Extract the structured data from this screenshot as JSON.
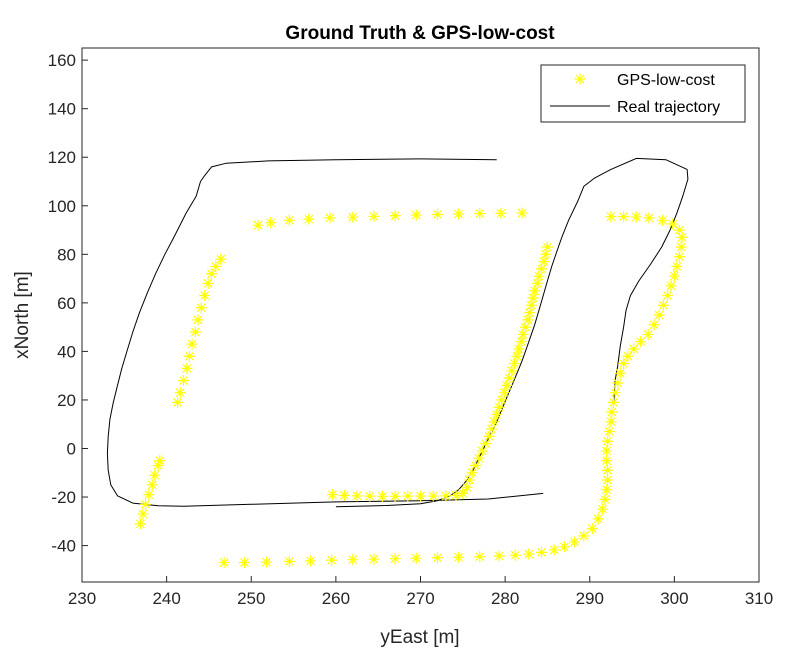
{
  "chart_data": {
    "type": "scatter",
    "title": "Ground Truth & GPS-low-cost",
    "xlabel": "yEast [m]",
    "ylabel": "xNorth [m]",
    "xlim": [
      230,
      310
    ],
    "ylim": [
      -55,
      165
    ],
    "xticks": [
      230,
      240,
      250,
      260,
      270,
      280,
      290,
      300,
      310
    ],
    "yticks": [
      -40,
      -20,
      0,
      20,
      40,
      60,
      80,
      100,
      120,
      140,
      160
    ],
    "grid": false,
    "legend_position": "top-right",
    "colors": {
      "gps": "#ffff00",
      "real": "#000000",
      "axis": "#262626"
    },
    "series": [
      {
        "name": "GPS-low-cost",
        "style": "markers",
        "marker": "asterisk",
        "segments": [
          [
            [
              236.9,
              -31
            ],
            [
              237.2,
              -27
            ],
            [
              237.5,
              -23
            ],
            [
              237.9,
              -19
            ],
            [
              238.3,
              -15
            ],
            [
              238.6,
              -11
            ],
            [
              239.0,
              -7
            ],
            [
              239.2,
              -5
            ]
          ],
          [
            [
              241.3,
              19
            ],
            [
              241.6,
              23
            ],
            [
              242.0,
              28
            ],
            [
              242.4,
              33
            ],
            [
              242.7,
              38
            ],
            [
              243.0,
              43
            ],
            [
              243.4,
              48
            ],
            [
              243.7,
              53
            ],
            [
              244.1,
              58
            ],
            [
              244.5,
              63
            ],
            [
              244.9,
              68
            ],
            [
              245.3,
              72
            ],
            [
              245.8,
              75
            ],
            [
              246.4,
              78
            ]
          ],
          [
            [
              250.8,
              92
            ],
            [
              252.3,
              93
            ],
            [
              254.5,
              94
            ],
            [
              256.8,
              94.5
            ],
            [
              259.3,
              95
            ],
            [
              262.0,
              95.3
            ],
            [
              264.5,
              95.6
            ],
            [
              267.0,
              95.9
            ],
            [
              269.5,
              96.2
            ],
            [
              272.0,
              96.4
            ],
            [
              274.5,
              96.6
            ],
            [
              277.0,
              96.8
            ],
            [
              279.5,
              96.9
            ],
            [
              282.0,
              97
            ]
          ],
          [
            [
              246.8,
              -47
            ],
            [
              249.2,
              -47
            ],
            [
              251.8,
              -46.8
            ],
            [
              254.5,
              -46.5
            ],
            [
              257.0,
              -46.3
            ],
            [
              259.5,
              -46
            ],
            [
              262.0,
              -45.8
            ],
            [
              264.5,
              -45.6
            ],
            [
              267.0,
              -45.4
            ],
            [
              269.5,
              -45.2
            ],
            [
              272.0,
              -45
            ],
            [
              274.5,
              -44.8
            ],
            [
              277.0,
              -44.6
            ],
            [
              279.3,
              -44.3
            ],
            [
              281.2,
              -44
            ],
            [
              282.8,
              -43.5
            ],
            [
              284.3,
              -42.8
            ],
            [
              285.8,
              -41.8
            ],
            [
              287.0,
              -40.5
            ],
            [
              288.2,
              -38.5
            ],
            [
              289.3,
              -36
            ],
            [
              290.3,
              -33
            ],
            [
              291.0,
              -29
            ],
            [
              291.5,
              -25
            ],
            [
              291.8,
              -21
            ],
            [
              292.0,
              -17
            ],
            [
              292.1,
              -13
            ],
            [
              292.1,
              -9
            ],
            [
              292.0,
              -5
            ],
            [
              292.0,
              -1
            ],
            [
              292.1,
              3
            ],
            [
              292.3,
              7
            ],
            [
              292.5,
              11
            ],
            [
              292.6,
              15
            ],
            [
              292.8,
              19
            ],
            [
              293.0,
              23
            ],
            [
              293.3,
              27
            ],
            [
              293.6,
              31
            ],
            [
              294.0,
              35
            ],
            [
              294.5,
              38
            ],
            [
              295.2,
              41
            ],
            [
              296.0,
              44
            ],
            [
              296.9,
              47
            ],
            [
              297.6,
              51
            ],
            [
              298.2,
              55
            ],
            [
              298.7,
              59
            ],
            [
              299.2,
              63
            ],
            [
              299.6,
              67
            ],
            [
              300.0,
              71
            ],
            [
              300.3,
              75
            ],
            [
              300.6,
              79
            ],
            [
              300.8,
              83
            ],
            [
              300.9,
              87
            ],
            [
              300.6,
              90
            ],
            [
              299.8,
              92.5
            ],
            [
              298.6,
              94
            ],
            [
              297.0,
              95
            ],
            [
              295.5,
              95.4
            ],
            [
              294.0,
              95.5
            ],
            [
              292.5,
              95.5
            ]
          ],
          [
            [
              259.6,
              -19
            ],
            [
              261.0,
              -19.3
            ],
            [
              262.5,
              -19.5
            ],
            [
              264.0,
              -19.6
            ],
            [
              265.5,
              -19.7
            ],
            [
              267.0,
              -19.7
            ],
            [
              268.5,
              -19.6
            ],
            [
              270.0,
              -19.6
            ],
            [
              271.5,
              -19.6
            ],
            [
              273.0,
              -19.5
            ],
            [
              274.2,
              -19.3
            ],
            [
              275.0,
              -18.5
            ],
            [
              275.5,
              -16
            ],
            [
              275.8,
              -13
            ],
            [
              276.1,
              -10
            ],
            [
              276.5,
              -7
            ],
            [
              276.9,
              -4
            ],
            [
              277.3,
              -1
            ],
            [
              277.7,
              2
            ],
            [
              278.1,
              5
            ],
            [
              278.4,
              8
            ],
            [
              278.7,
              11
            ],
            [
              279.0,
              14
            ],
            [
              279.3,
              17
            ],
            [
              279.6,
              20
            ],
            [
              279.9,
              23
            ],
            [
              280.2,
              26
            ],
            [
              280.5,
              29
            ],
            [
              280.8,
              32
            ],
            [
              281.1,
              35
            ],
            [
              281.4,
              38
            ],
            [
              281.6,
              41
            ],
            [
              281.9,
              44
            ],
            [
              282.1,
              47
            ],
            [
              282.4,
              50
            ],
            [
              282.7,
              53
            ],
            [
              282.9,
              56
            ],
            [
              283.1,
              59
            ],
            [
              283.3,
              62
            ],
            [
              283.5,
              65
            ],
            [
              283.8,
              68
            ],
            [
              284.0,
              71
            ],
            [
              284.3,
              74
            ],
            [
              284.6,
              77
            ],
            [
              284.8,
              80
            ],
            [
              285.0,
              83
            ]
          ]
        ]
      },
      {
        "name": "Real trajectory",
        "style": "line",
        "segments": [
          [
            [
              279.0,
              119
            ],
            [
              270.0,
              119.3
            ],
            [
              260.0,
              119
            ],
            [
              252.0,
              118.5
            ],
            [
              247.0,
              117.5
            ],
            [
              245.3,
              116
            ],
            [
              244.4,
              112
            ],
            [
              244.0,
              110
            ],
            [
              243.5,
              104
            ],
            [
              242.3,
              97
            ],
            [
              241.0,
              88
            ],
            [
              239.8,
              80
            ],
            [
              238.7,
              72
            ],
            [
              237.7,
              64
            ],
            [
              236.8,
              56
            ],
            [
              236.0,
              48
            ],
            [
              235.3,
              40
            ],
            [
              234.7,
              33
            ],
            [
              234.2,
              26
            ],
            [
              233.7,
              19
            ],
            [
              233.3,
              12
            ],
            [
              233.1,
              5
            ],
            [
              233.0,
              -2
            ],
            [
              233.1,
              -9
            ],
            [
              233.4,
              -15
            ],
            [
              234.2,
              -19.5
            ],
            [
              236.0,
              -22.5
            ],
            [
              239.0,
              -23.6
            ],
            [
              242.0,
              -23.8
            ],
            [
              250.0,
              -23
            ],
            [
              260.0,
              -22
            ],
            [
              270.0,
              -21.5
            ],
            [
              278.0,
              -20.8
            ],
            [
              284.5,
              -18.5
            ]
          ],
          [
            [
              260.0,
              -24
            ],
            [
              266.0,
              -23.5
            ],
            [
              270.0,
              -22.8
            ],
            [
              272.0,
              -21.5
            ],
            [
              273.5,
              -19.5
            ],
            [
              274.5,
              -17
            ],
            [
              275.5,
              -13
            ],
            [
              276.2,
              -9
            ],
            [
              276.9,
              -4
            ],
            [
              277.6,
              1
            ],
            [
              278.3,
              6
            ],
            [
              279.0,
              11
            ],
            [
              279.6,
              16
            ],
            [
              280.2,
              21
            ],
            [
              280.8,
              26
            ],
            [
              281.4,
              31
            ],
            [
              282.0,
              36
            ],
            [
              282.5,
              41
            ],
            [
              283.0,
              46
            ],
            [
              283.5,
              51
            ],
            [
              284.0,
              57
            ],
            [
              284.5,
              63
            ],
            [
              285.0,
              69
            ],
            [
              285.5,
              75
            ],
            [
              286.1,
              81
            ],
            [
              286.7,
              87
            ],
            [
              287.5,
              94
            ],
            [
              288.6,
              102
            ],
            [
              289.3,
              108
            ],
            [
              290.6,
              111.5
            ],
            [
              292.5,
              115
            ],
            [
              295.5,
              119.5
            ],
            [
              299.0,
              119
            ],
            [
              301.5,
              115
            ],
            [
              301.6,
              111
            ],
            [
              301.0,
              104
            ],
            [
              300.3,
              97
            ],
            [
              299.5,
              90
            ],
            [
              298.5,
              83
            ],
            [
              297.2,
              76
            ],
            [
              295.8,
              69
            ],
            [
              294.8,
              63
            ],
            [
              294.3,
              57
            ],
            [
              294.0,
              50
            ],
            [
              293.6,
              42
            ],
            [
              293.3,
              34
            ],
            [
              293.0,
              28
            ],
            [
              292.9,
              22
            ],
            [
              292.8,
              18
            ]
          ]
        ]
      }
    ]
  }
}
